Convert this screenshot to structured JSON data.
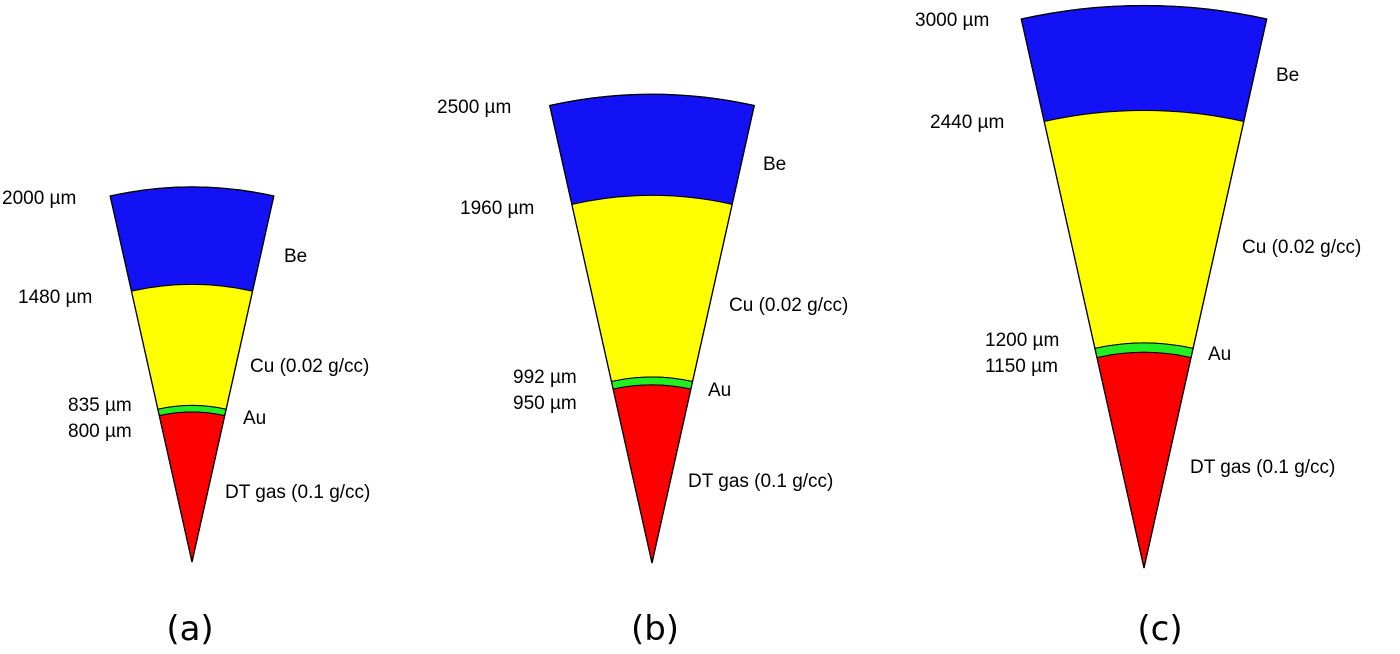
{
  "layer_colors": {
    "Be": "#1212f5",
    "Cu": "#ffff00",
    "Au": "#22ee22",
    "DT": "#ff0000"
  },
  "panels": [
    {
      "caption": "(a)",
      "radii": [
        "2000 µm",
        "1480 µm",
        "835 µm",
        "800 µm"
      ],
      "materials": [
        "Be",
        "Cu (0.02 g/cc)",
        "Au",
        "DT gas (0.1 g/cc)"
      ],
      "radii_um": [
        2000,
        1480,
        835,
        800
      ]
    },
    {
      "caption": "(b)",
      "radii": [
        "2500 µm",
        "1960 µm",
        "992 µm",
        "950 µm"
      ],
      "materials": [
        "Be",
        "Cu (0.02 g/cc)",
        "Au",
        "DT gas (0.1 g/cc)"
      ],
      "radii_um": [
        2500,
        1960,
        992,
        950
      ]
    },
    {
      "caption": "(c)",
      "radii": [
        "3000 µm",
        "2440 µm",
        "1200 µm",
        "1150 µm"
      ],
      "materials": [
        "Be",
        "Cu (0.02 g/cc)",
        "Au",
        "DT gas (0.1 g/cc)"
      ],
      "radii_um": [
        3000,
        2440,
        1200,
        1150
      ]
    }
  ]
}
